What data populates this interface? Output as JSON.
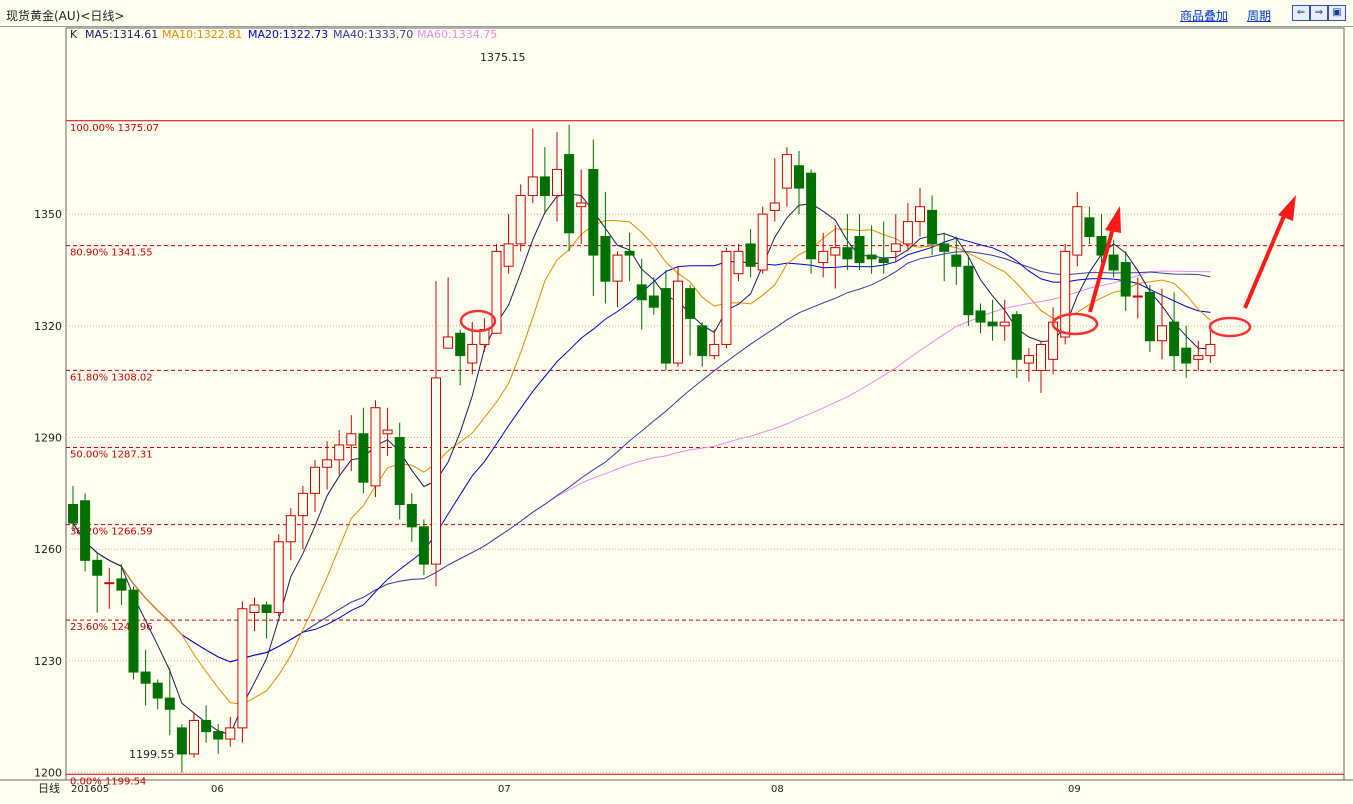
{
  "title": "现货黄金(AU)<日线>",
  "toolbar": {
    "overlay_label": "商品叠加",
    "period_label": "周期",
    "nav_prev": "⇐",
    "nav_next": "⇒",
    "nav_zoom": "▣"
  },
  "ma_legend": {
    "k": "K",
    "ma5": "MA5:1314.61",
    "ma10": "MA10:1322.81",
    "ma20": "MA20:1322.73",
    "ma40": "MA40:1333.70",
    "ma60": "MA60:1334.75"
  },
  "colors": {
    "up": "#cc0000",
    "down": "#007000",
    "ma5": "#1a1a66",
    "ma10": "#e88a00",
    "ma20": "#0000cc",
    "ma40": "#3a3aa0",
    "ma60": "#ee88ee",
    "fib": "#cc0000"
  },
  "chart_data": {
    "type": "candlestick",
    "y_ticks": [
      1200,
      1230,
      1260,
      1290,
      1320,
      1350
    ],
    "ylim": [
      1198,
      1400
    ],
    "x_labels": [
      "201605",
      "06",
      "07",
      "08",
      "09"
    ],
    "period_label": "日线",
    "high_label": "1375.15",
    "low_label": "1199.55",
    "fib_levels": [
      {
        "label": "100.00% 1375.07",
        "value": 1375.07
      },
      {
        "label": "80.90% 1341.55",
        "value": 1341.55
      },
      {
        "label": "61.80% 1308.02",
        "value": 1308.02
      },
      {
        "label": "50.00% 1287.31",
        "value": 1287.31
      },
      {
        "label": "38.20% 1266.59",
        "value": 1266.59
      },
      {
        "label": "23.60% 1240.96",
        "value": 1240.96
      },
      {
        "label": "0.00% 1199.54",
        "value": 1199.54
      }
    ],
    "candles": [
      [
        1272,
        1267,
        1277,
        1265
      ],
      [
        1273,
        1257,
        1275,
        1254
      ],
      [
        1257,
        1253,
        1259,
        1243
      ],
      [
        1251,
        1251,
        1255,
        1244
      ],
      [
        1252,
        1249,
        1256,
        1245
      ],
      [
        1249,
        1227,
        1250,
        1225
      ],
      [
        1227,
        1224,
        1233,
        1218
      ],
      [
        1224,
        1220,
        1225,
        1217
      ],
      [
        1220,
        1217,
        1228,
        1210
      ],
      [
        1212,
        1205,
        1213,
        1200
      ],
      [
        1205,
        1214,
        1216,
        1204
      ],
      [
        1214,
        1211,
        1218,
        1208
      ],
      [
        1211,
        1209,
        1213,
        1205
      ],
      [
        1209,
        1212,
        1215,
        1207
      ],
      [
        1212,
        1244,
        1246,
        1208
      ],
      [
        1243,
        1245,
        1247,
        1238
      ],
      [
        1245,
        1243,
        1246,
        1236
      ],
      [
        1243,
        1262,
        1264,
        1242
      ],
      [
        1262,
        1269,
        1271,
        1257
      ],
      [
        1269,
        1275,
        1277,
        1260
      ],
      [
        1275,
        1282,
        1284,
        1270
      ],
      [
        1282,
        1284,
        1289,
        1276
      ],
      [
        1284,
        1288,
        1292,
        1280
      ],
      [
        1288,
        1291,
        1296,
        1281
      ],
      [
        1291,
        1278,
        1298,
        1275
      ],
      [
        1277,
        1298,
        1300,
        1274
      ],
      [
        1291,
        1292,
        1298,
        1285
      ],
      [
        1290,
        1272,
        1294,
        1268
      ],
      [
        1272,
        1266,
        1275,
        1262
      ],
      [
        1266,
        1256,
        1268,
        1253
      ],
      [
        1256,
        1306,
        1332,
        1250
      ],
      [
        1314,
        1317,
        1333,
        1314
      ],
      [
        1318,
        1312,
        1319,
        1304
      ],
      [
        1310,
        1315,
        1321,
        1307
      ],
      [
        1315,
        1319,
        1322,
        1313
      ],
      [
        1318,
        1340,
        1342,
        1318
      ],
      [
        1336,
        1342,
        1350,
        1334
      ],
      [
        1342,
        1355,
        1358,
        1340
      ],
      [
        1355,
        1360,
        1373,
        1353
      ],
      [
        1360,
        1355,
        1368,
        1350
      ],
      [
        1355,
        1362,
        1372,
        1348
      ],
      [
        1366,
        1345,
        1374,
        1340
      ],
      [
        1352,
        1353,
        1362,
        1342
      ],
      [
        1362,
        1339,
        1370,
        1328
      ],
      [
        1344,
        1332,
        1356,
        1326
      ],
      [
        1332,
        1339,
        1340,
        1325
      ],
      [
        1340,
        1339,
        1345,
        1332
      ],
      [
        1331,
        1327,
        1338,
        1319
      ],
      [
        1328,
        1325,
        1333,
        1323
      ],
      [
        1330,
        1310,
        1335,
        1308
      ],
      [
        1310,
        1332,
        1336,
        1309
      ],
      [
        1330,
        1322,
        1331,
        1312
      ],
      [
        1320,
        1312,
        1321,
        1309
      ],
      [
        1312,
        1315,
        1319,
        1311
      ],
      [
        1315,
        1340,
        1341,
        1314
      ],
      [
        1334,
        1340,
        1342,
        1332
      ],
      [
        1342,
        1336,
        1346,
        1333
      ],
      [
        1335,
        1350,
        1352,
        1334
      ],
      [
        1351,
        1353,
        1365,
        1348
      ],
      [
        1357,
        1366,
        1368,
        1352
      ],
      [
        1363,
        1357,
        1367,
        1350
      ],
      [
        1361,
        1338,
        1362,
        1334
      ],
      [
        1337,
        1340,
        1345,
        1333
      ],
      [
        1339,
        1341,
        1347,
        1330
      ],
      [
        1341,
        1338,
        1350,
        1335
      ],
      [
        1344,
        1337,
        1350,
        1335
      ],
      [
        1339,
        1338,
        1347,
        1334
      ],
      [
        1338,
        1337,
        1348,
        1334
      ],
      [
        1340,
        1342,
        1350,
        1337
      ],
      [
        1342,
        1348,
        1353,
        1340
      ],
      [
        1348,
        1352,
        1357,
        1344
      ],
      [
        1351,
        1342,
        1355,
        1339
      ],
      [
        1342,
        1340,
        1345,
        1332
      ],
      [
        1339,
        1336,
        1344,
        1331
      ],
      [
        1336,
        1323,
        1339,
        1320
      ],
      [
        1324,
        1321,
        1326,
        1318
      ],
      [
        1321,
        1320,
        1327,
        1316
      ],
      [
        1320,
        1321,
        1327,
        1316
      ],
      [
        1323,
        1311,
        1324,
        1306
      ],
      [
        1310,
        1312,
        1314,
        1305
      ],
      [
        1308,
        1315,
        1316,
        1302
      ],
      [
        1311,
        1321,
        1325,
        1307
      ],
      [
        1317,
        1340,
        1342,
        1315
      ],
      [
        1339,
        1352,
        1356,
        1336
      ],
      [
        1349,
        1344,
        1352,
        1342
      ],
      [
        1344,
        1339,
        1350,
        1337
      ],
      [
        1339,
        1335,
        1343,
        1333
      ],
      [
        1337,
        1328,
        1340,
        1324
      ],
      [
        1328,
        1328,
        1333,
        1322
      ],
      [
        1329,
        1316,
        1331,
        1313
      ],
      [
        1316,
        1320,
        1330,
        1311
      ],
      [
        1321,
        1312,
        1329,
        1308
      ],
      [
        1314,
        1310,
        1320,
        1306
      ],
      [
        1311,
        1312,
        1316,
        1308
      ],
      [
        1312,
        1315,
        1321,
        1310
      ]
    ]
  }
}
